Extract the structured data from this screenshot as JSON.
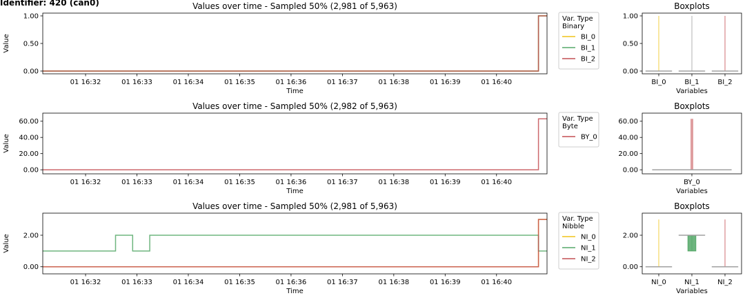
{
  "page_title": "Identifier: 420 (can0)",
  "colors": {
    "frame": "#000000",
    "legend_border": "#cccccc",
    "box_grey": "#a0a0a0"
  },
  "chart_data": [
    {
      "type": "line",
      "title": "Values over time - Sampled 50% (2,981 of 5,963)",
      "xlabel": "Time",
      "ylabel": "Value",
      "x_ticks": [
        "01 16:32",
        "01 16:33",
        "01 16:34",
        "01 16:35",
        "01 16:36",
        "01 16:37",
        "01 16:38",
        "01 16:39",
        "01 16:40"
      ],
      "x_range": [
        "01 16:31:10",
        "01 16:40:59"
      ],
      "ylim": [
        -0.05,
        1.05
      ],
      "y_ticks": [
        0,
        0.5,
        1
      ],
      "y_tick_labels": [
        "0.00",
        "0.50",
        "1.00"
      ],
      "legend": {
        "title_lines": [
          "Var. Type",
          "Binary"
        ],
        "placement": "outside-right"
      },
      "series": [
        {
          "name": "BI_0",
          "color": "#f0c419",
          "points": [
            [
              "01 16:31:10",
              0
            ],
            [
              "01 16:40:49",
              0
            ],
            [
              "01 16:40:49",
              1
            ],
            [
              "01 16:40:59",
              1
            ]
          ]
        },
        {
          "name": "BI_1",
          "color": "#55a868",
          "points": [
            [
              "01 16:31:10",
              0
            ],
            [
              "01 16:40:49",
              0
            ],
            [
              "01 16:40:49",
              1
            ],
            [
              "01 16:40:59",
              1
            ]
          ]
        },
        {
          "name": "BI_2",
          "color": "#c44e52",
          "points": [
            [
              "01 16:31:10",
              0
            ],
            [
              "01 16:40:49",
              0
            ],
            [
              "01 16:40:49",
              1
            ],
            [
              "01 16:40:59",
              1
            ]
          ]
        }
      ]
    },
    {
      "type": "line",
      "title": "Values over time - Sampled 50% (2,982 of 5,963)",
      "xlabel": "Time",
      "ylabel": "Value",
      "x_ticks": [
        "01 16:32",
        "01 16:33",
        "01 16:34",
        "01 16:35",
        "01 16:36",
        "01 16:37",
        "01 16:38",
        "01 16:39",
        "01 16:40"
      ],
      "x_range": [
        "01 16:31:10",
        "01 16:40:59"
      ],
      "ylim": [
        -5,
        70
      ],
      "y_ticks": [
        0,
        20,
        40,
        60
      ],
      "y_tick_labels": [
        "0.00",
        "20.00",
        "40.00",
        "60.00"
      ],
      "legend": {
        "title_lines": [
          "Var. Type",
          "Byte"
        ],
        "placement": "outside-right"
      },
      "series": [
        {
          "name": "BY_0",
          "color": "#c44e52",
          "points": [
            [
              "01 16:31:10",
              0
            ],
            [
              "01 16:40:49",
              0
            ],
            [
              "01 16:40:49",
              63
            ],
            [
              "01 16:40:59",
              63
            ]
          ]
        }
      ]
    },
    {
      "type": "line",
      "title": "Values over time - Sampled 50% (2,981 of 5,963)",
      "xlabel": "Time",
      "ylabel": "Value",
      "x_ticks": [
        "01 16:32",
        "01 16:33",
        "01 16:34",
        "01 16:35",
        "01 16:36",
        "01 16:37",
        "01 16:38",
        "01 16:39",
        "01 16:40"
      ],
      "x_range": [
        "01 16:31:10",
        "01 16:40:59"
      ],
      "ylim": [
        -0.45,
        3.4
      ],
      "y_ticks": [
        0,
        2
      ],
      "y_tick_labels": [
        "0.00",
        "2.00"
      ],
      "legend": {
        "title_lines": [
          "Var. Type",
          "Nibble"
        ],
        "placement": "outside-right"
      },
      "series": [
        {
          "name": "NI_0",
          "color": "#f0c419",
          "points": [
            [
              "01 16:31:10",
              0
            ],
            [
              "01 16:40:49",
              0
            ],
            [
              "01 16:40:49",
              3
            ],
            [
              "01 16:40:59",
              3
            ]
          ]
        },
        {
          "name": "NI_1",
          "color": "#55a868",
          "points": [
            [
              "01 16:31:10",
              1
            ],
            [
              "01 16:32:35",
              1
            ],
            [
              "01 16:32:35",
              2
            ],
            [
              "01 16:32:55",
              2
            ],
            [
              "01 16:32:55",
              1
            ],
            [
              "01 16:33:15",
              1
            ],
            [
              "01 16:33:15",
              2
            ],
            [
              "01 16:40:49",
              2
            ],
            [
              "01 16:40:49",
              1
            ],
            [
              "01 16:40:59",
              1
            ]
          ]
        },
        {
          "name": "NI_2",
          "color": "#c44e52",
          "points": [
            [
              "01 16:31:10",
              0
            ],
            [
              "01 16:40:49",
              0
            ],
            [
              "01 16:40:49",
              3
            ],
            [
              "01 16:40:59",
              3
            ]
          ]
        }
      ]
    },
    {
      "type": "box",
      "title": "Boxplots",
      "xlabel": "Variables",
      "categories": [
        "BI_0",
        "BI_1",
        "BI_2"
      ],
      "ylim": [
        -0.05,
        1.05
      ],
      "y_ticks": [
        0,
        0.5,
        1
      ],
      "y_tick_labels": [
        "0.00",
        "0.50",
        "1.00"
      ],
      "boxes": [
        {
          "category": "BI_0",
          "color": "#f0c419",
          "min": 0,
          "q1": 0,
          "median": 0,
          "q3": 0,
          "max": 1
        },
        {
          "category": "BI_1",
          "color": "#a0a0a0",
          "min": 0,
          "q1": 0,
          "median": 0,
          "q3": 0,
          "max": 1
        },
        {
          "category": "BI_2",
          "color": "#c44e52",
          "min": 0,
          "q1": 0,
          "median": 0,
          "q3": 0,
          "max": 1
        }
      ]
    },
    {
      "type": "box",
      "title": "Boxplots",
      "xlabel": "Variables",
      "categories": [
        "BY_0"
      ],
      "ylim": [
        -5,
        70
      ],
      "y_ticks": [
        0,
        20,
        40,
        60
      ],
      "y_tick_labels": [
        "0.00",
        "20.00",
        "40.00",
        "60.00"
      ],
      "boxes": [
        {
          "category": "BY_0",
          "color": "#c44e52",
          "min": 0,
          "q1": 0,
          "median": 0,
          "q3": 0,
          "max": 63
        }
      ]
    },
    {
      "type": "box",
      "title": "Boxplots",
      "xlabel": "Variables",
      "categories": [
        "NI_0",
        "NI_1",
        "NI_2"
      ],
      "ylim": [
        -0.45,
        3.4
      ],
      "y_ticks": [
        0,
        2
      ],
      "y_tick_labels": [
        "0.00",
        "2.00"
      ],
      "boxes": [
        {
          "category": "NI_0",
          "color": "#f0c419",
          "min": 0,
          "q1": 0,
          "median": 0,
          "q3": 0,
          "max": 3
        },
        {
          "category": "NI_1",
          "color": "#55a868",
          "min": 1,
          "q1": 1,
          "median": 2,
          "q3": 2,
          "max": 2
        },
        {
          "category": "NI_2",
          "color": "#c44e52",
          "min": 0,
          "q1": 0,
          "median": 0,
          "q3": 0,
          "max": 3
        }
      ]
    }
  ]
}
